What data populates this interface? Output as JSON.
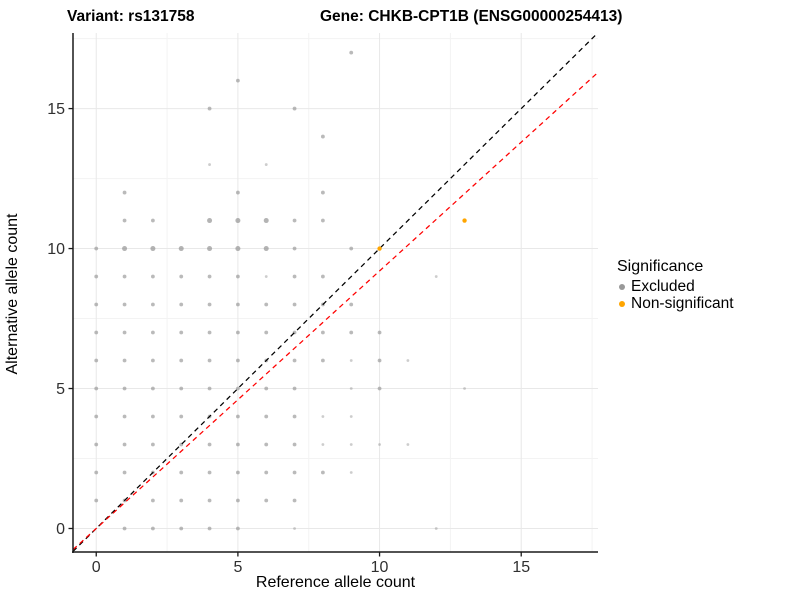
{
  "titles": {
    "variant": "Variant: rs131758",
    "gene": "Gene: CHKB-CPT1B (ENSG00000254413)"
  },
  "chart_data": {
    "type": "scatter",
    "xlabel": "Reference allele count",
    "ylabel": "Alternative allele count",
    "xlim": [
      -0.82,
      17.71
    ],
    "ylim": [
      -0.84,
      17.7
    ],
    "x_ticks": [
      0,
      5,
      10,
      15
    ],
    "y_ticks": [
      0,
      5,
      10,
      15
    ],
    "x_minor": [
      2.5,
      7.5,
      12.5,
      17.5
    ],
    "y_minor": [
      2.5,
      7.5,
      12.5,
      17.5
    ],
    "grid": true,
    "colors": {
      "gray_point": "#909090",
      "orange_point": "#FFA500",
      "major_grid": "#e8e8e8",
      "minor_grid": "#f3f3f3",
      "axis_line": "#1a1a1a",
      "tick_label": "#303030"
    },
    "series": [
      {
        "name": "Excluded",
        "color": "#909090",
        "points": [
          [
            1,
            0,
            2
          ],
          [
            2,
            0,
            2
          ],
          [
            3,
            0,
            2
          ],
          [
            4,
            0,
            2
          ],
          [
            5,
            0,
            2
          ],
          [
            7,
            0,
            1
          ],
          [
            12,
            0,
            1
          ],
          [
            0,
            1,
            2
          ],
          [
            1,
            1,
            2
          ],
          [
            2,
            1,
            2
          ],
          [
            3,
            1,
            2
          ],
          [
            4,
            1,
            2
          ],
          [
            5,
            1,
            2
          ],
          [
            6,
            1,
            2
          ],
          [
            7,
            1,
            2
          ],
          [
            0,
            2,
            2
          ],
          [
            1,
            2,
            2
          ],
          [
            2,
            2,
            2
          ],
          [
            3,
            2,
            2
          ],
          [
            4,
            2,
            2
          ],
          [
            5,
            2,
            2
          ],
          [
            6,
            2,
            2
          ],
          [
            7,
            2,
            2
          ],
          [
            8,
            2,
            2
          ],
          [
            9,
            2,
            1
          ],
          [
            0,
            3,
            2
          ],
          [
            1,
            3,
            2
          ],
          [
            2,
            3,
            2
          ],
          [
            3,
            3,
            2
          ],
          [
            4,
            3,
            2
          ],
          [
            5,
            3,
            2
          ],
          [
            6,
            3,
            2
          ],
          [
            7,
            3,
            2
          ],
          [
            8,
            3,
            1
          ],
          [
            9,
            3,
            1
          ],
          [
            10,
            3,
            1
          ],
          [
            11,
            3,
            1
          ],
          [
            0,
            4,
            2
          ],
          [
            1,
            4,
            2
          ],
          [
            2,
            4,
            2
          ],
          [
            3,
            4,
            2
          ],
          [
            4,
            4,
            2
          ],
          [
            5,
            4,
            2
          ],
          [
            6,
            4,
            2
          ],
          [
            7,
            4,
            2
          ],
          [
            8,
            4,
            1
          ],
          [
            9,
            4,
            1
          ],
          [
            0,
            5,
            2
          ],
          [
            1,
            5,
            2
          ],
          [
            2,
            5,
            2
          ],
          [
            3,
            5,
            2
          ],
          [
            4,
            5,
            2
          ],
          [
            5,
            5,
            2
          ],
          [
            6,
            5,
            2
          ],
          [
            7,
            5,
            2
          ],
          [
            9,
            5,
            1
          ],
          [
            10,
            5,
            2
          ],
          [
            13,
            5,
            1
          ],
          [
            0,
            6,
            2
          ],
          [
            1,
            6,
            2
          ],
          [
            2,
            6,
            2
          ],
          [
            3,
            6,
            2
          ],
          [
            4,
            6,
            2
          ],
          [
            5,
            6,
            2
          ],
          [
            6,
            6,
            2
          ],
          [
            7,
            6,
            2
          ],
          [
            8,
            6,
            2
          ],
          [
            9,
            6,
            1
          ],
          [
            10,
            6,
            2
          ],
          [
            11,
            6,
            1
          ],
          [
            0,
            7,
            2
          ],
          [
            1,
            7,
            2
          ],
          [
            2,
            7,
            2
          ],
          [
            3,
            7,
            2
          ],
          [
            4,
            7,
            2
          ],
          [
            5,
            7,
            2
          ],
          [
            6,
            7,
            2
          ],
          [
            7,
            7,
            2
          ],
          [
            8,
            7,
            2
          ],
          [
            9,
            7,
            2
          ],
          [
            10,
            7,
            2
          ],
          [
            0,
            8,
            2
          ],
          [
            1,
            8,
            2
          ],
          [
            2,
            8,
            2
          ],
          [
            3,
            8,
            2
          ],
          [
            4,
            8,
            2
          ],
          [
            5,
            8,
            2
          ],
          [
            6,
            8,
            2
          ],
          [
            7,
            8,
            2
          ],
          [
            8,
            8,
            2
          ],
          [
            9,
            8,
            2
          ],
          [
            0,
            9,
            2
          ],
          [
            1,
            9,
            2
          ],
          [
            2,
            9,
            2
          ],
          [
            3,
            9,
            2
          ],
          [
            4,
            9,
            2
          ],
          [
            5,
            9,
            2
          ],
          [
            6,
            9,
            1
          ],
          [
            7,
            9,
            2
          ],
          [
            8,
            9,
            2
          ],
          [
            12,
            9,
            1
          ],
          [
            0,
            10,
            2
          ],
          [
            1,
            10,
            3
          ],
          [
            2,
            10,
            3
          ],
          [
            3,
            10,
            3
          ],
          [
            4,
            10,
            3
          ],
          [
            5,
            10,
            3
          ],
          [
            6,
            10,
            3
          ],
          [
            7,
            10,
            2
          ],
          [
            9,
            10,
            2
          ],
          [
            1,
            11,
            2
          ],
          [
            2,
            11,
            2
          ],
          [
            4,
            11,
            3
          ],
          [
            5,
            11,
            3
          ],
          [
            6,
            11,
            3
          ],
          [
            7,
            11,
            2
          ],
          [
            8,
            11,
            2
          ],
          [
            1,
            12,
            2
          ],
          [
            5,
            12,
            2
          ],
          [
            8,
            12,
            2
          ],
          [
            4,
            13,
            1
          ],
          [
            6,
            13,
            1
          ],
          [
            8,
            14,
            2
          ],
          [
            4,
            15,
            2
          ],
          [
            7,
            15,
            2
          ],
          [
            5,
            16,
            2
          ],
          [
            9,
            17,
            2
          ]
        ]
      },
      {
        "name": "Non-significant",
        "color": "#FFA500",
        "points": [
          [
            10,
            10,
            2
          ],
          [
            13,
            11,
            2
          ]
        ]
      }
    ],
    "lines": [
      {
        "name": "identity-line",
        "color": "#000000",
        "slope": 1.0,
        "intercept": 0,
        "dash": "5,4"
      },
      {
        "name": "fit-line",
        "color": "#FF0000",
        "slope": 0.92,
        "intercept": 0,
        "dash": "5,4"
      }
    ],
    "legend": {
      "title": "Significance",
      "position": "right",
      "entries": [
        {
          "label": "Excluded",
          "color": "#999999"
        },
        {
          "label": "Non-significant",
          "color": "#FFA500"
        }
      ]
    }
  }
}
